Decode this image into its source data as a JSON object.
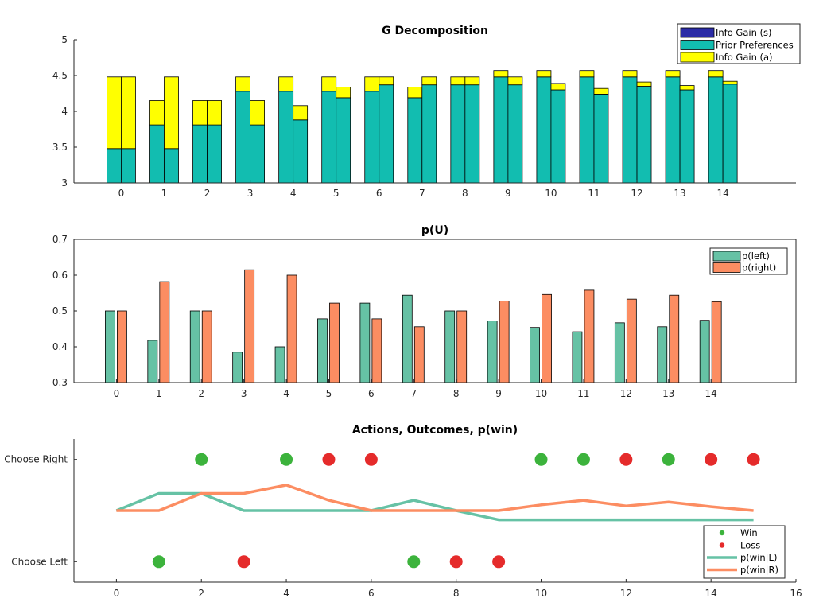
{
  "chart_data": [
    {
      "type": "bar",
      "stacked": true,
      "title": "G Decomposition",
      "xlabel": "",
      "ylabel": "",
      "xlim": [
        -1.1,
        15.7
      ],
      "ylim": [
        3,
        5
      ],
      "yticks": [
        "3",
        "3.5",
        "4",
        "4.5",
        "5"
      ],
      "ytick_values": [
        3,
        3.5,
        4,
        4.5,
        5
      ],
      "categories": [
        "0",
        "1",
        "2",
        "3",
        "4",
        "5",
        "6",
        "7",
        "8",
        "9",
        "10",
        "11",
        "12",
        "13",
        "14"
      ],
      "groups_per_category": 2,
      "colors": {
        "info_gain_s": "#2b2ca6",
        "prior_preferences": "#12bdb0",
        "info_gain_a": "#ffff00"
      },
      "series": [
        {
          "name": "Info Gain (s)",
          "key": "info_gain_s",
          "values_left": [
            0,
            0,
            0,
            0,
            0,
            0,
            0,
            0,
            0,
            0,
            0,
            0,
            0,
            0,
            0
          ],
          "values_right": [
            0,
            0,
            0,
            0,
            0,
            0,
            0,
            0,
            0,
            0,
            0,
            0,
            0,
            0,
            0
          ]
        },
        {
          "name": "Prior Preferences",
          "key": "prior_preferences",
          "values_left": [
            3.48,
            3.81,
            3.81,
            4.28,
            4.28,
            4.28,
            4.28,
            4.19,
            4.37,
            4.48,
            4.48,
            4.48,
            4.48,
            4.48,
            4.48
          ],
          "values_right": [
            3.48,
            3.48,
            3.81,
            3.81,
            3.88,
            4.19,
            4.37,
            4.37,
            4.37,
            4.37,
            4.3,
            4.24,
            4.35,
            4.3,
            4.38
          ]
        },
        {
          "name": "Info Gain (a)",
          "key": "info_gain_a",
          "values_left": [
            1.0,
            0.34,
            0.34,
            0.2,
            0.2,
            0.2,
            0.2,
            0.15,
            0.11,
            0.09,
            0.09,
            0.09,
            0.09,
            0.09,
            0.09
          ],
          "values_right": [
            1.0,
            1.0,
            0.34,
            0.34,
            0.2,
            0.15,
            0.11,
            0.11,
            0.11,
            0.11,
            0.09,
            0.08,
            0.06,
            0.06,
            0.04
          ]
        }
      ],
      "legend": [
        "Info Gain (s)",
        "Prior Preferences",
        "Info Gain (a)"
      ],
      "legend_location": "top-right"
    },
    {
      "type": "bar",
      "title": "p(U)",
      "xlim": [
        -1,
        16
      ],
      "ylim": [
        0.3,
        0.7
      ],
      "yticks": [
        "0.3",
        "0.4",
        "0.5",
        "0.6",
        "0.7"
      ],
      "ytick_values": [
        0.3,
        0.4,
        0.5,
        0.6,
        0.7
      ],
      "categories": [
        "0",
        "1",
        "2",
        "3",
        "4",
        "5",
        "6",
        "7",
        "8",
        "9",
        "10",
        "11",
        "12",
        "13",
        "14"
      ],
      "series": [
        {
          "name": "p(left)",
          "color": "#66c2a5",
          "values": [
            0.5,
            0.418,
            0.5,
            0.385,
            0.4,
            0.478,
            0.522,
            0.544,
            0.5,
            0.472,
            0.454,
            0.442,
            0.467,
            0.456,
            0.474
          ]
        },
        {
          "name": "p(right)",
          "color": "#fc8d62",
          "values": [
            0.5,
            0.582,
            0.5,
            0.615,
            0.6,
            0.522,
            0.478,
            0.456,
            0.5,
            0.528,
            0.546,
            0.558,
            0.533,
            0.544,
            0.526
          ]
        }
      ],
      "legend_location": "top-right"
    },
    {
      "type": "line",
      "title": "Actions, Outcomes, p(win)",
      "xlim": [
        -1,
        16
      ],
      "ylim": [
        -0.2,
        1.2
      ],
      "xticks": [
        "0",
        "2",
        "4",
        "6",
        "8",
        "10",
        "12",
        "14",
        "16"
      ],
      "xtick_values": [
        0,
        2,
        4,
        6,
        8,
        10,
        12,
        14,
        16
      ],
      "yticks": [
        "Choose Left",
        "Choose Right"
      ],
      "ytick_values": [
        0,
        1
      ],
      "series": [
        {
          "name": "Win",
          "kind": "scatter",
          "color": "#3cb33c",
          "points": [
            [
              1,
              0
            ],
            [
              2,
              1
            ],
            [
              4,
              1
            ],
            [
              7,
              0
            ],
            [
              10,
              1
            ],
            [
              11,
              1
            ],
            [
              13,
              1
            ]
          ]
        },
        {
          "name": "Loss",
          "kind": "scatter",
          "color": "#e52b2b",
          "points": [
            [
              3,
              0
            ],
            [
              5,
              1
            ],
            [
              6,
              1
            ],
            [
              8,
              0
            ],
            [
              9,
              0
            ],
            [
              12,
              1
            ],
            [
              14,
              1
            ],
            [
              15,
              1
            ]
          ]
        },
        {
          "name": "p(win|L)",
          "kind": "line",
          "color": "#66c2a5",
          "x": [
            0,
            1,
            2,
            3,
            4,
            5,
            6,
            7,
            8,
            9,
            10,
            11,
            12,
            13,
            14,
            15
          ],
          "y": [
            0.5,
            0.667,
            0.667,
            0.5,
            0.5,
            0.5,
            0.5,
            0.6,
            0.5,
            0.41,
            0.41,
            0.41,
            0.41,
            0.41,
            0.41,
            0.41
          ]
        },
        {
          "name": "p(win|R)",
          "kind": "line",
          "color": "#fc8d62",
          "x": [
            0,
            1,
            2,
            3,
            4,
            5,
            6,
            7,
            8,
            9,
            10,
            11,
            12,
            13,
            14,
            15
          ],
          "y": [
            0.5,
            0.5,
            0.667,
            0.667,
            0.75,
            0.6,
            0.5,
            0.5,
            0.5,
            0.5,
            0.556,
            0.6,
            0.545,
            0.583,
            0.538,
            0.5
          ]
        }
      ],
      "legend": [
        "Win",
        "Loss",
        "p(win|L)",
        "p(win|R)"
      ],
      "legend_location": "bottom-right"
    }
  ]
}
